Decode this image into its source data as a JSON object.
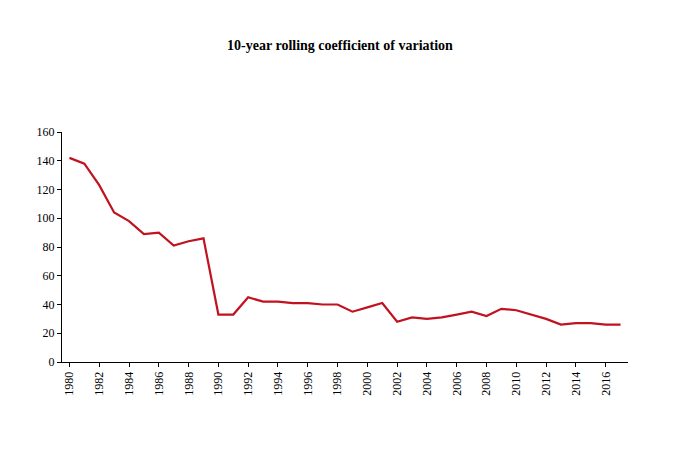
{
  "chart_data": {
    "type": "line",
    "title": "10-year rolling coefficient of variation",
    "categories": [
      "1980",
      null,
      "1982",
      null,
      "1984",
      null,
      "1986",
      null,
      "1988",
      null,
      "1990",
      null,
      "1992",
      null,
      "1994",
      null,
      "1996",
      null,
      "1998",
      null,
      "2000",
      null,
      "2002",
      null,
      "2004",
      null,
      "2006",
      null,
      "2008",
      null,
      "2010",
      null,
      "2012",
      null,
      "2014",
      null,
      "2016",
      null
    ],
    "values": [
      142,
      138,
      123,
      104,
      98,
      89,
      90,
      81,
      84,
      86,
      33,
      33,
      45,
      42,
      42,
      41,
      41,
      40,
      40,
      35,
      38,
      41,
      28,
      31,
      30,
      31,
      33,
      35,
      32,
      37,
      36,
      33,
      30,
      26,
      27,
      27,
      26,
      26
    ],
    "color": "#c0121f",
    "ylim": [
      0,
      160
    ],
    "yticks": [
      0,
      20,
      40,
      60,
      80,
      100,
      120,
      140,
      160
    ],
    "grid": false
  }
}
